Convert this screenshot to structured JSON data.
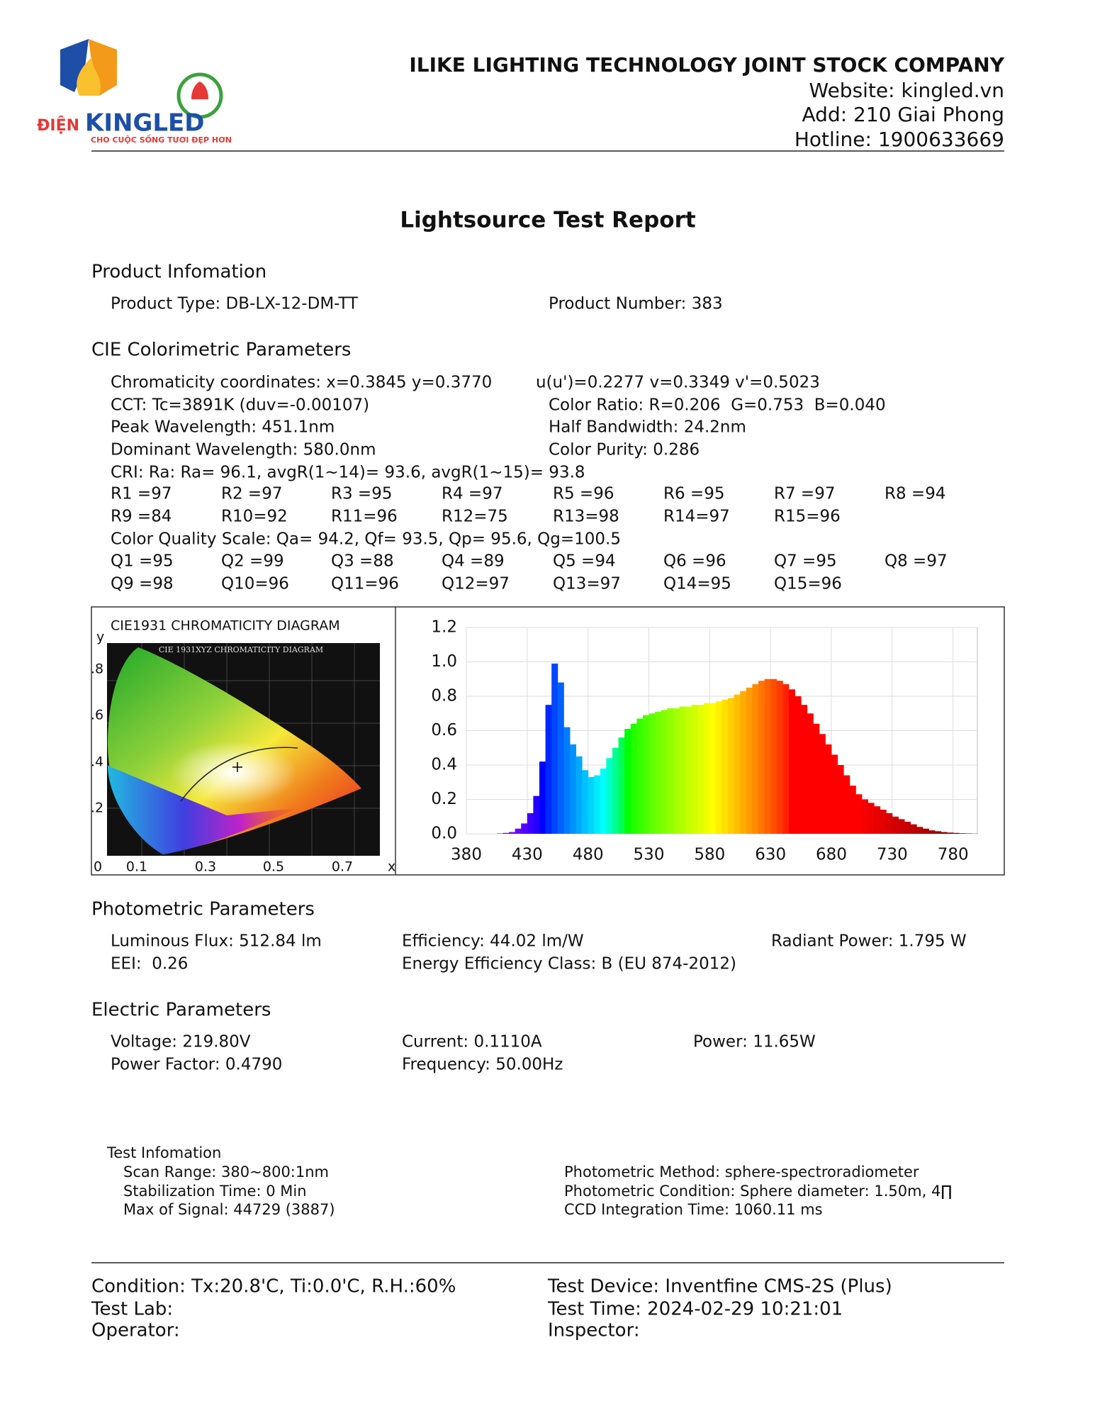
{
  "header": {
    "logo_left": "ĐIỆN",
    "logo_brand": "KINGLED",
    "logo_slogan": "CHO CUỘC SỐNG TƯƠI ĐẸP HƠN",
    "company": "ILIKE LIGHTING TECHNOLOGY JOINT STOCK COMPANY",
    "website": "Website: kingled.vn",
    "address": "Add: 210 Giai Phong",
    "hotline": "Hotline: 1900633669"
  },
  "title": "Lightsource Test Report",
  "product": {
    "heading": "Product Infomation",
    "type": "Product Type: DB-LX-12-DM-TT",
    "number": "Product Number: 383"
  },
  "colorimetric": {
    "heading": "CIE Colorimetric Parameters",
    "rows": [
      [
        "Chromaticity coordinates: x=0.3845 y=0.3770",
        "u(u')=0.2277 v=0.3349 v'=0.5023"
      ],
      [
        "CCT: Tc=3891K (duv=-0.00107)",
        "Color Ratio: R=0.206  G=0.753  B=0.040"
      ],
      [
        "Peak Wavelength: 451.1nm",
        "Half Bandwidth: 24.2nm"
      ],
      [
        "Dominant Wavelength: 580.0nm",
        "Color Purity: 0.286"
      ]
    ],
    "cri": "CRI: Ra: Ra= 96.1, avgR(1~14)= 93.6, avgR(1~15)= 93.8",
    "r_values": [
      [
        "R1 =97",
        "R2 =97",
        "R3 =95",
        "R4 =97",
        "R5 =96",
        "R6 =95",
        "R7 =97",
        "R8 =94"
      ],
      [
        "R9 =84",
        "R10=92",
        "R11=96",
        "R12=75",
        "R13=98",
        "R14=97",
        "R15=96"
      ]
    ],
    "cqs": "Color Quality Scale: Qa= 94.2, Qf= 93.5, Qp= 95.6, Qg=100.5",
    "q_values": [
      [
        "Q1 =95",
        "Q2 =99",
        "Q3 =88",
        "Q4 =89",
        "Q5 =94",
        "Q6 =96",
        "Q7 =95",
        "Q8 =97"
      ],
      [
        "Q9 =98",
        "Q10=96",
        "Q11=96",
        "Q12=97",
        "Q13=97",
        "Q14=95",
        "Q15=96"
      ]
    ]
  },
  "cie_diagram": {
    "title": "CIE1931 CHROMATICITY DIAGRAM",
    "image_title": "CIE 1931XYZ CHROMATICITY DIAGRAM",
    "y_label": "y",
    "y_ticks": [
      ".8",
      ".6",
      ".4",
      ".2"
    ],
    "x_ticks": [
      "0",
      "0.1",
      "0.3",
      "0.5",
      "0.7"
    ],
    "x_label": "x"
  },
  "chart_data": {
    "type": "bar",
    "x": [
      380,
      385,
      390,
      395,
      400,
      405,
      410,
      415,
      420,
      425,
      430,
      435,
      440,
      445,
      450,
      455,
      460,
      465,
      470,
      475,
      480,
      485,
      490,
      495,
      500,
      505,
      510,
      515,
      520,
      525,
      530,
      535,
      540,
      545,
      550,
      555,
      560,
      565,
      570,
      575,
      580,
      585,
      590,
      595,
      600,
      605,
      610,
      615,
      620,
      625,
      630,
      635,
      640,
      645,
      650,
      655,
      660,
      665,
      670,
      675,
      680,
      685,
      690,
      695,
      700,
      705,
      710,
      715,
      720,
      725,
      730,
      735,
      740,
      745,
      750,
      755,
      760,
      765,
      770,
      775,
      780,
      785,
      790,
      795,
      800
    ],
    "values": [
      0,
      0,
      0,
      0,
      0,
      0.002,
      0.005,
      0.01,
      0.03,
      0.06,
      0.12,
      0.22,
      0.42,
      0.75,
      0.99,
      0.88,
      0.62,
      0.52,
      0.45,
      0.37,
      0.33,
      0.34,
      0.38,
      0.44,
      0.5,
      0.56,
      0.61,
      0.64,
      0.67,
      0.69,
      0.7,
      0.71,
      0.72,
      0.73,
      0.73,
      0.74,
      0.74,
      0.75,
      0.75,
      0.76,
      0.76,
      0.77,
      0.78,
      0.79,
      0.81,
      0.83,
      0.85,
      0.87,
      0.89,
      0.9,
      0.9,
      0.89,
      0.87,
      0.84,
      0.8,
      0.75,
      0.7,
      0.64,
      0.58,
      0.52,
      0.46,
      0.4,
      0.34,
      0.28,
      0.23,
      0.2,
      0.18,
      0.16,
      0.14,
      0.12,
      0.1,
      0.085,
      0.07,
      0.055,
      0.04,
      0.03,
      0.02,
      0.015,
      0.01,
      0.007,
      0.005,
      0.003,
      0.002,
      0.001,
      0
    ],
    "xlim": [
      380,
      800
    ],
    "ylim": [
      0,
      1.2
    ],
    "xticks": [
      380,
      430,
      480,
      530,
      580,
      630,
      680,
      730,
      780
    ],
    "yticks": [
      {
        "value": 0,
        "label": "0.0"
      },
      0.2,
      0.4,
      0.6,
      0.8,
      {
        "value": 1,
        "label": "1.0"
      },
      1.2
    ],
    "grid": true
  },
  "photometric": {
    "heading": "Photometric Parameters",
    "rows": [
      [
        "Luminous Flux: 512.84 lm",
        "Efficiency: 44.02 lm/W",
        "Radiant Power: 1.795 W"
      ],
      [
        "EEI:  0.26",
        "Energy Efficiency Class: B (EU 874-2012)"
      ]
    ]
  },
  "electric": {
    "heading": "Electric Parameters",
    "rows": [
      [
        "Voltage: 219.80V",
        "Current: 0.1110A",
        "Power: 11.65W"
      ],
      [
        "Power Factor: 0.4790",
        "Frequency: 50.00Hz"
      ]
    ]
  },
  "test_info": {
    "heading": "Test Infomation",
    "left": [
      "Scan Range: 380~800:1nm",
      "Stabilization Time: 0 Min",
      "Max of Signal: 44729 (3887)"
    ],
    "right": [
      "Photometric Method: sphere-spectroradiometer",
      "Photometric Condition: Sphere diameter: 1.50m, 4∏",
      "CCD Integration Time: 1060.11 ms"
    ]
  },
  "footer": {
    "left": [
      "Condition: Tx:20.8'C, Ti:0.0'C, R.H.:60%",
      "Test Lab:",
      "Operator:"
    ],
    "right": [
      "Test Device: Inventfine CMS-2S (Plus)",
      "Test Time: 2024-02-29 10:21:01",
      "Inspector:"
    ]
  }
}
